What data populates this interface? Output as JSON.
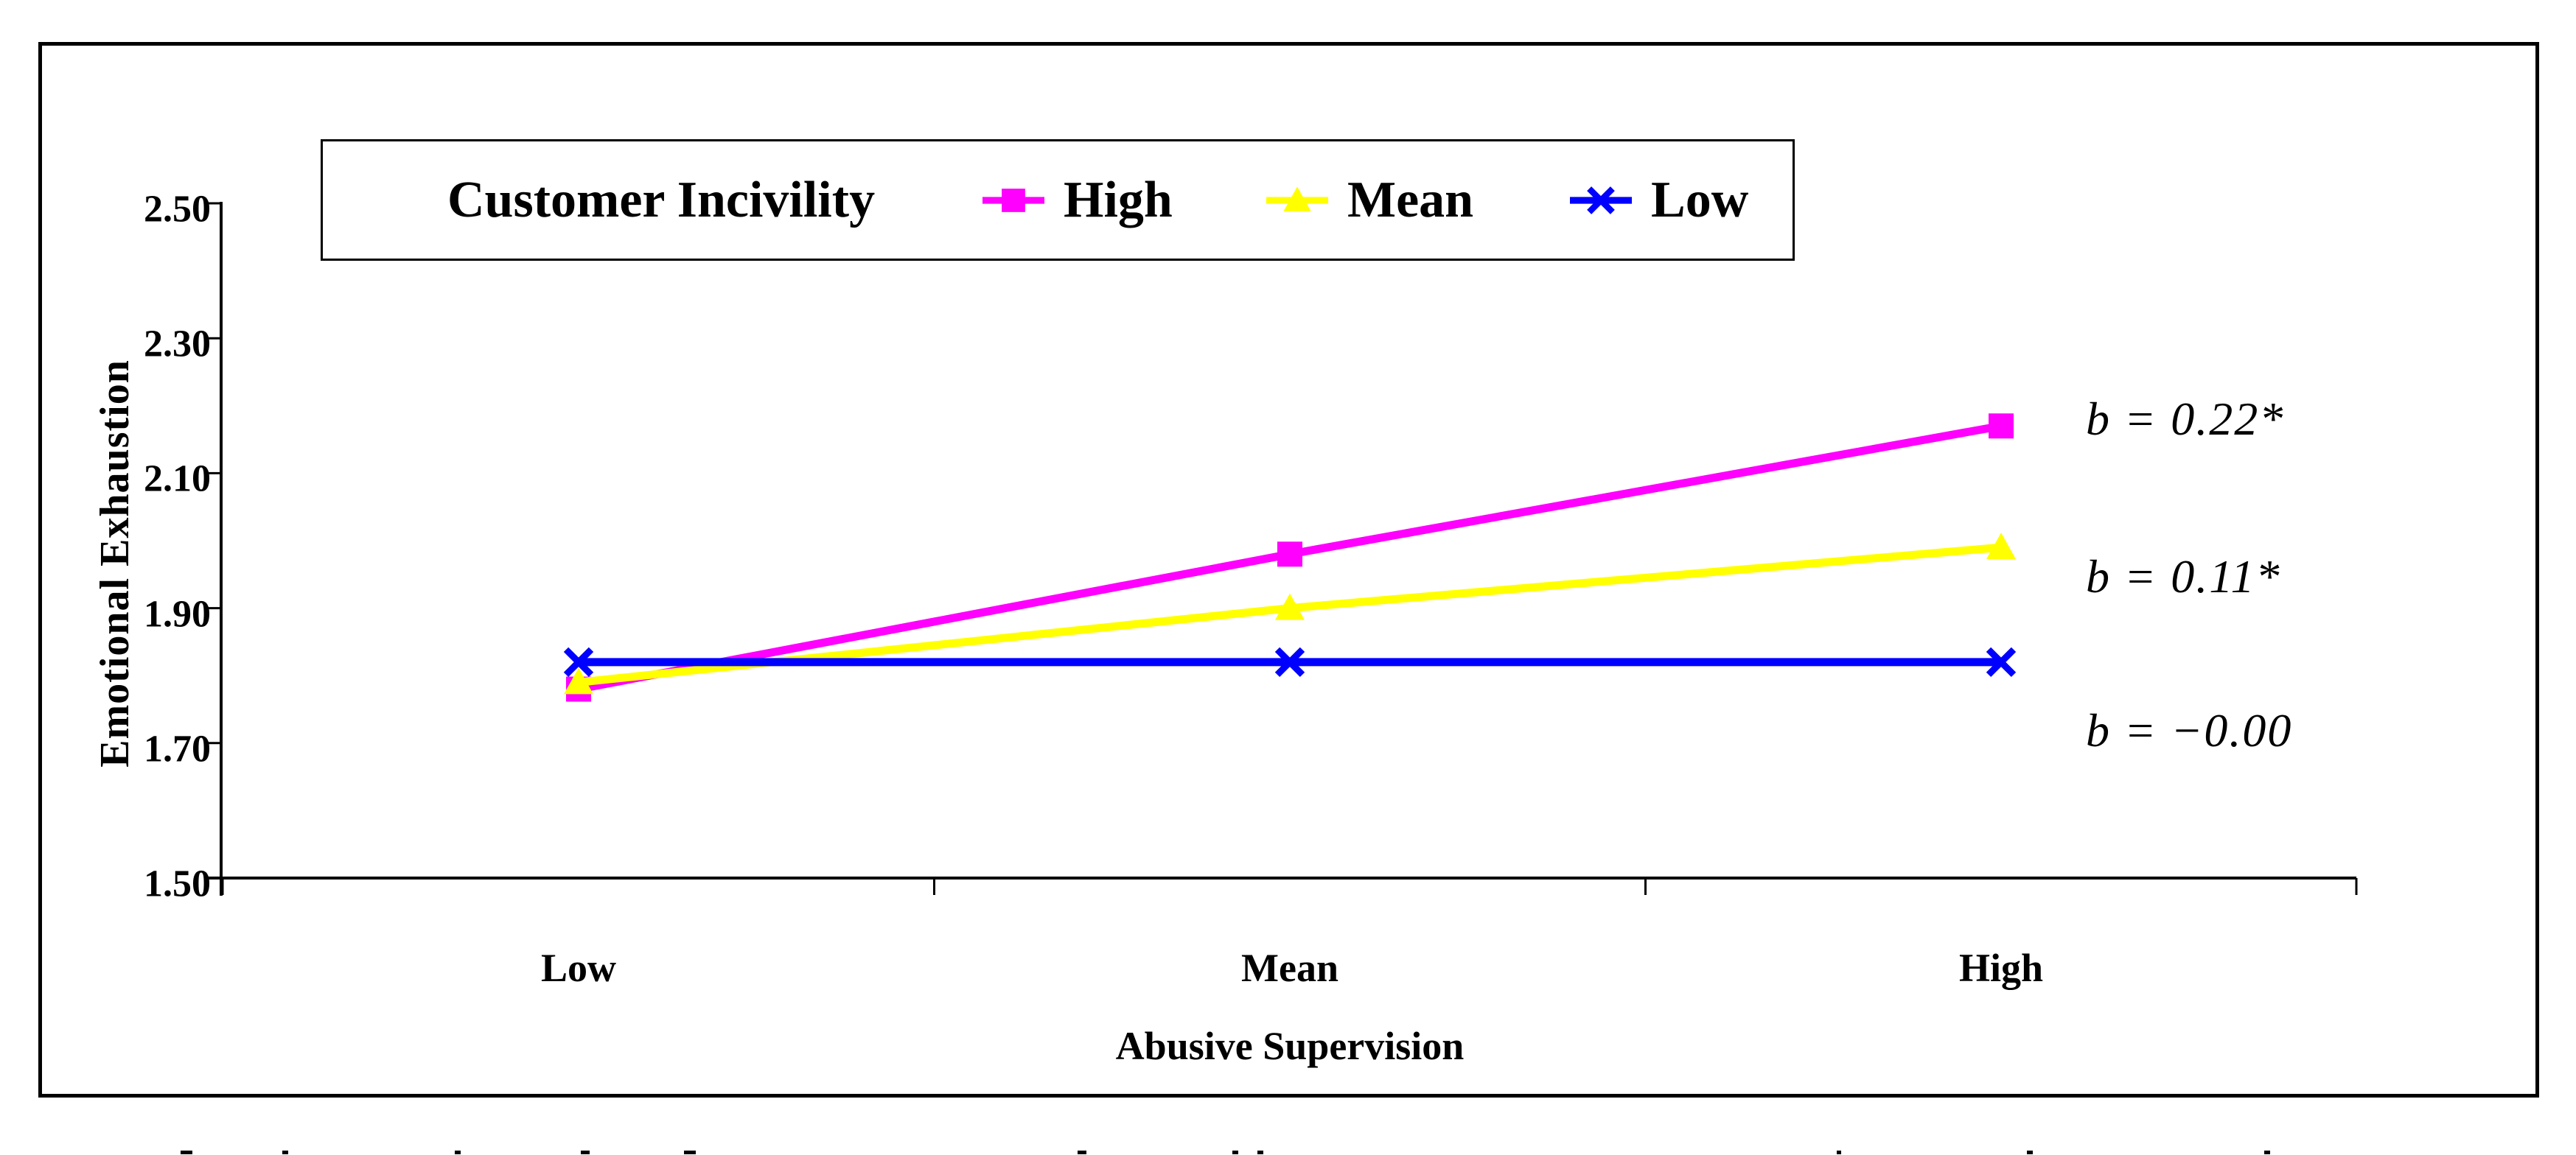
{
  "chart_data": {
    "type": "line",
    "title": "",
    "categories": [
      "Low",
      "Mean",
      "High"
    ],
    "xlabel": "Abusive Supervision",
    "ylabel": "Emotional Exhaustion",
    "ylim": [
      1.5,
      2.5
    ],
    "y_ticks": [
      "2.50",
      "2.30",
      "2.10",
      "1.90",
      "1.70",
      "1.50"
    ],
    "y_tick_values": [
      2.5,
      2.3,
      2.1,
      1.9,
      1.7,
      1.5
    ],
    "grid": false,
    "axis_color": "#000000",
    "legend": {
      "title": "Customer Incivility",
      "position": "top"
    },
    "series": [
      {
        "name": "High",
        "color": "#FF00FF",
        "marker": "square",
        "values": [
          1.78,
          1.98,
          2.17
        ],
        "slope_label": "b = 0.22*"
      },
      {
        "name": "Mean",
        "color": "#FFFF00",
        "marker": "triangle",
        "values": [
          1.79,
          1.9,
          1.99
        ],
        "slope_label": "b = 0.11*"
      },
      {
        "name": "Low",
        "color": "#0000FF",
        "marker": "x",
        "values": [
          1.82,
          1.82,
          1.82
        ],
        "slope_label": "b = −0.00"
      }
    ]
  }
}
